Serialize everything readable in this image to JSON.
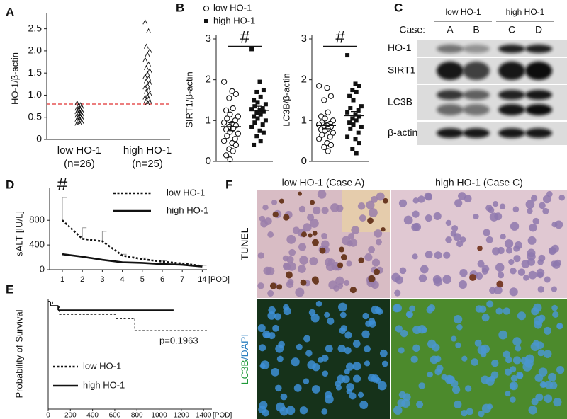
{
  "chart_data": [
    {
      "type": "strip",
      "label": "A",
      "ylabel": "HO-1/β-actin",
      "categories": [
        "low HO-1",
        "high HO-1"
      ],
      "sublabels": [
        "(n=26)",
        "(n=25)"
      ],
      "values": [
        [
          0.82,
          0.78,
          0.75,
          0.74,
          0.72,
          0.7,
          0.68,
          0.66,
          0.65,
          0.63,
          0.62,
          0.6,
          0.58,
          0.57,
          0.55,
          0.54,
          0.52,
          0.5,
          0.49,
          0.47,
          0.45,
          0.43,
          0.42,
          0.4,
          0.38,
          0.36
        ],
        [
          2.65,
          2.45,
          2.1,
          2.0,
          1.92,
          1.8,
          1.7,
          1.62,
          1.55,
          1.48,
          1.42,
          1.38,
          1.32,
          1.28,
          1.22,
          1.18,
          1.12,
          1.08,
          1.03,
          0.98,
          0.95,
          0.92,
          0.88,
          0.85,
          0.82
        ]
      ],
      "marker": "caret",
      "color": "#111111",
      "threshold": 0.8,
      "threshold_color": "#e03030",
      "ylim": [
        0,
        2.75
      ],
      "yticks": [
        0,
        0.5,
        {
          "value": 1,
          "label": "1.0"
        },
        1.5,
        {
          "value": 2,
          "label": "2.0"
        },
        2.5
      ]
    },
    {
      "type": "dot",
      "label": "B",
      "ylabel": "SIRT1/β-actin",
      "annotation": "#",
      "series": [
        {
          "name": "low HO-1",
          "marker": "open-circle",
          "color": "#111111",
          "mean": 0.85,
          "sem": 0.1,
          "values": [
            1.95,
            1.72,
            1.65,
            1.55,
            1.3,
            1.25,
            1.15,
            1.1,
            1.05,
            1.0,
            0.95,
            0.92,
            0.88,
            0.85,
            0.8,
            0.78,
            0.72,
            0.68,
            0.62,
            0.55,
            0.5,
            0.45,
            0.4,
            0.3,
            0.25,
            0.15,
            0.05
          ]
        },
        {
          "name": "high HO-1",
          "marker": "filled-square",
          "color": "#111111",
          "mean": 1.25,
          "sem": 0.1,
          "values": [
            2.75,
            1.95,
            1.75,
            1.7,
            1.58,
            1.5,
            1.45,
            1.4,
            1.35,
            1.3,
            1.28,
            1.25,
            1.22,
            1.2,
            1.15,
            1.1,
            1.05,
            1.0,
            0.95,
            0.9,
            0.85,
            0.75,
            0.7,
            0.62,
            0.5,
            0.4
          ]
        }
      ],
      "ylim": [
        0,
        3
      ],
      "yticks": [
        0,
        1,
        2,
        3
      ]
    },
    {
      "type": "dot",
      "ylabel": "LC3B/β-actin",
      "annotation": "#",
      "series": [
        {
          "marker": "open-circle",
          "color": "#111111",
          "mean": 0.88,
          "sem": 0.08,
          "values": [
            1.85,
            1.8,
            1.6,
            1.5,
            1.2,
            1.1,
            1.05,
            1.0,
            0.95,
            0.92,
            0.9,
            0.88,
            0.85,
            0.82,
            0.8,
            0.78,
            0.75,
            0.7,
            0.65,
            0.6,
            0.55,
            0.45,
            0.4,
            0.35,
            0.25
          ]
        },
        {
          "marker": "filled-square",
          "color": "#111111",
          "mean": 1.12,
          "sem": 0.1,
          "values": [
            2.6,
            1.9,
            1.85,
            1.75,
            1.7,
            1.6,
            1.5,
            1.35,
            1.3,
            1.25,
            1.2,
            1.15,
            1.1,
            1.05,
            1.0,
            0.95,
            0.9,
            0.85,
            0.8,
            0.7,
            0.6,
            0.55,
            0.45,
            0.3,
            0.2
          ]
        }
      ],
      "ylim": [
        0,
        3
      ],
      "yticks": [
        0,
        1,
        2,
        3
      ]
    },
    {
      "type": "line",
      "label": "D",
      "ylabel": "sALT [IU/L]",
      "xlabel": "[POD]",
      "annotation": "#",
      "categories": [
        "1",
        "2",
        "3",
        "4",
        "5",
        "6",
        "7",
        "14"
      ],
      "series": [
        {
          "name": "low HO-1",
          "line_style": "dotted",
          "color": "#111111",
          "values": [
            800,
            500,
            460,
            230,
            170,
            130,
            100,
            60
          ],
          "errors": [
            370,
            180,
            160,
            20,
            20,
            15,
            10,
            10
          ]
        },
        {
          "name": "high HO-1",
          "line_style": "solid",
          "color": "#111111",
          "values": [
            250,
            210,
            160,
            120,
            110,
            90,
            80,
            50
          ]
        }
      ],
      "ylim": [
        0,
        1250
      ],
      "yticks": [
        0,
        400,
        800
      ]
    },
    {
      "type": "survival",
      "label": "E",
      "ylabel": "Probability of Survival",
      "xlabel": "[POD]",
      "annotation": "p=0.1963",
      "series": [
        {
          "name": "low HO-1",
          "line_style": "dotted",
          "color": "#111111",
          "x": [
            0,
            40,
            100,
            610,
            780,
            1430
          ],
          "values": [
            1,
            0.96,
            0.88,
            0.84,
            0.73,
            0.73
          ]
        },
        {
          "name": "high HO-1",
          "line_style": "solid",
          "color": "#111111",
          "x": [
            0,
            20,
            90,
            1130
          ],
          "values": [
            1,
            0.96,
            0.92,
            0.92
          ]
        }
      ],
      "xlim": [
        0,
        1450
      ],
      "xticks": [
        0,
        200,
        400,
        600,
        800,
        1000,
        1200,
        1400
      ],
      "ylim": [
        0,
        1
      ]
    }
  ],
  "blot": {
    "label": "C",
    "groups": [
      "low HO-1",
      "high HO-1"
    ],
    "case_label": "Case:",
    "cases": [
      "A",
      "B",
      "C",
      "D"
    ],
    "rows": [
      "HO-1",
      "SIRT1",
      "LC3B",
      "β-actin"
    ]
  },
  "micrographs": {
    "label": "F",
    "columns": [
      "low HO-1 (Case A)",
      "high HO-1 (Case C)"
    ],
    "rows": [
      [
        "TUNEL"
      ],
      [
        "LC3B",
        "/DAPI"
      ]
    ]
  }
}
